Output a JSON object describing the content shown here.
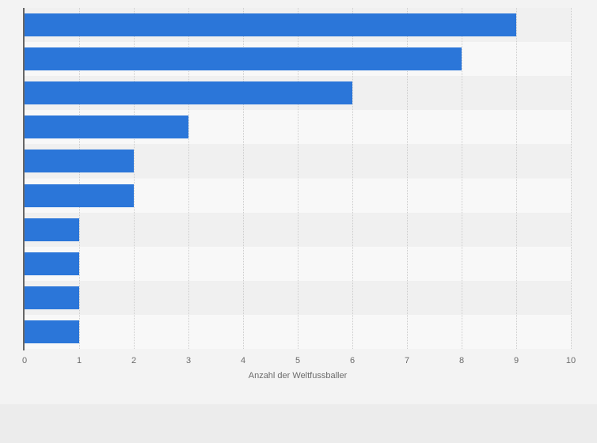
{
  "chart_data": {
    "type": "bar",
    "orientation": "horizontal",
    "title": "",
    "xlabel": "Anzahl der Weltfussballer",
    "ylabel": "",
    "categories": [
      "",
      "",
      "",
      "",
      "",
      "",
      "",
      "",
      "",
      ""
    ],
    "values": [
      9,
      8,
      6,
      3,
      2,
      2,
      1,
      1,
      1,
      1
    ],
    "xlim": [
      0,
      10
    ],
    "xticks": [
      0,
      1,
      2,
      3,
      4,
      5,
      6,
      7,
      8,
      9,
      10
    ],
    "grid": "vertical-dotted",
    "legend": false,
    "data_labels": false
  },
  "style": {
    "bar_color": "#2b76d9",
    "band_color_odd": "#f0f0f0",
    "band_color_even": "#f8f8f8",
    "gridline_color": "#cccccc",
    "y_axis_line_color": "#666666",
    "tick_label_color": "#6b6b6b",
    "axis_title_color": "#6b6b6b",
    "widget_background": "#f3f3f3",
    "page_background": "#ececec"
  }
}
